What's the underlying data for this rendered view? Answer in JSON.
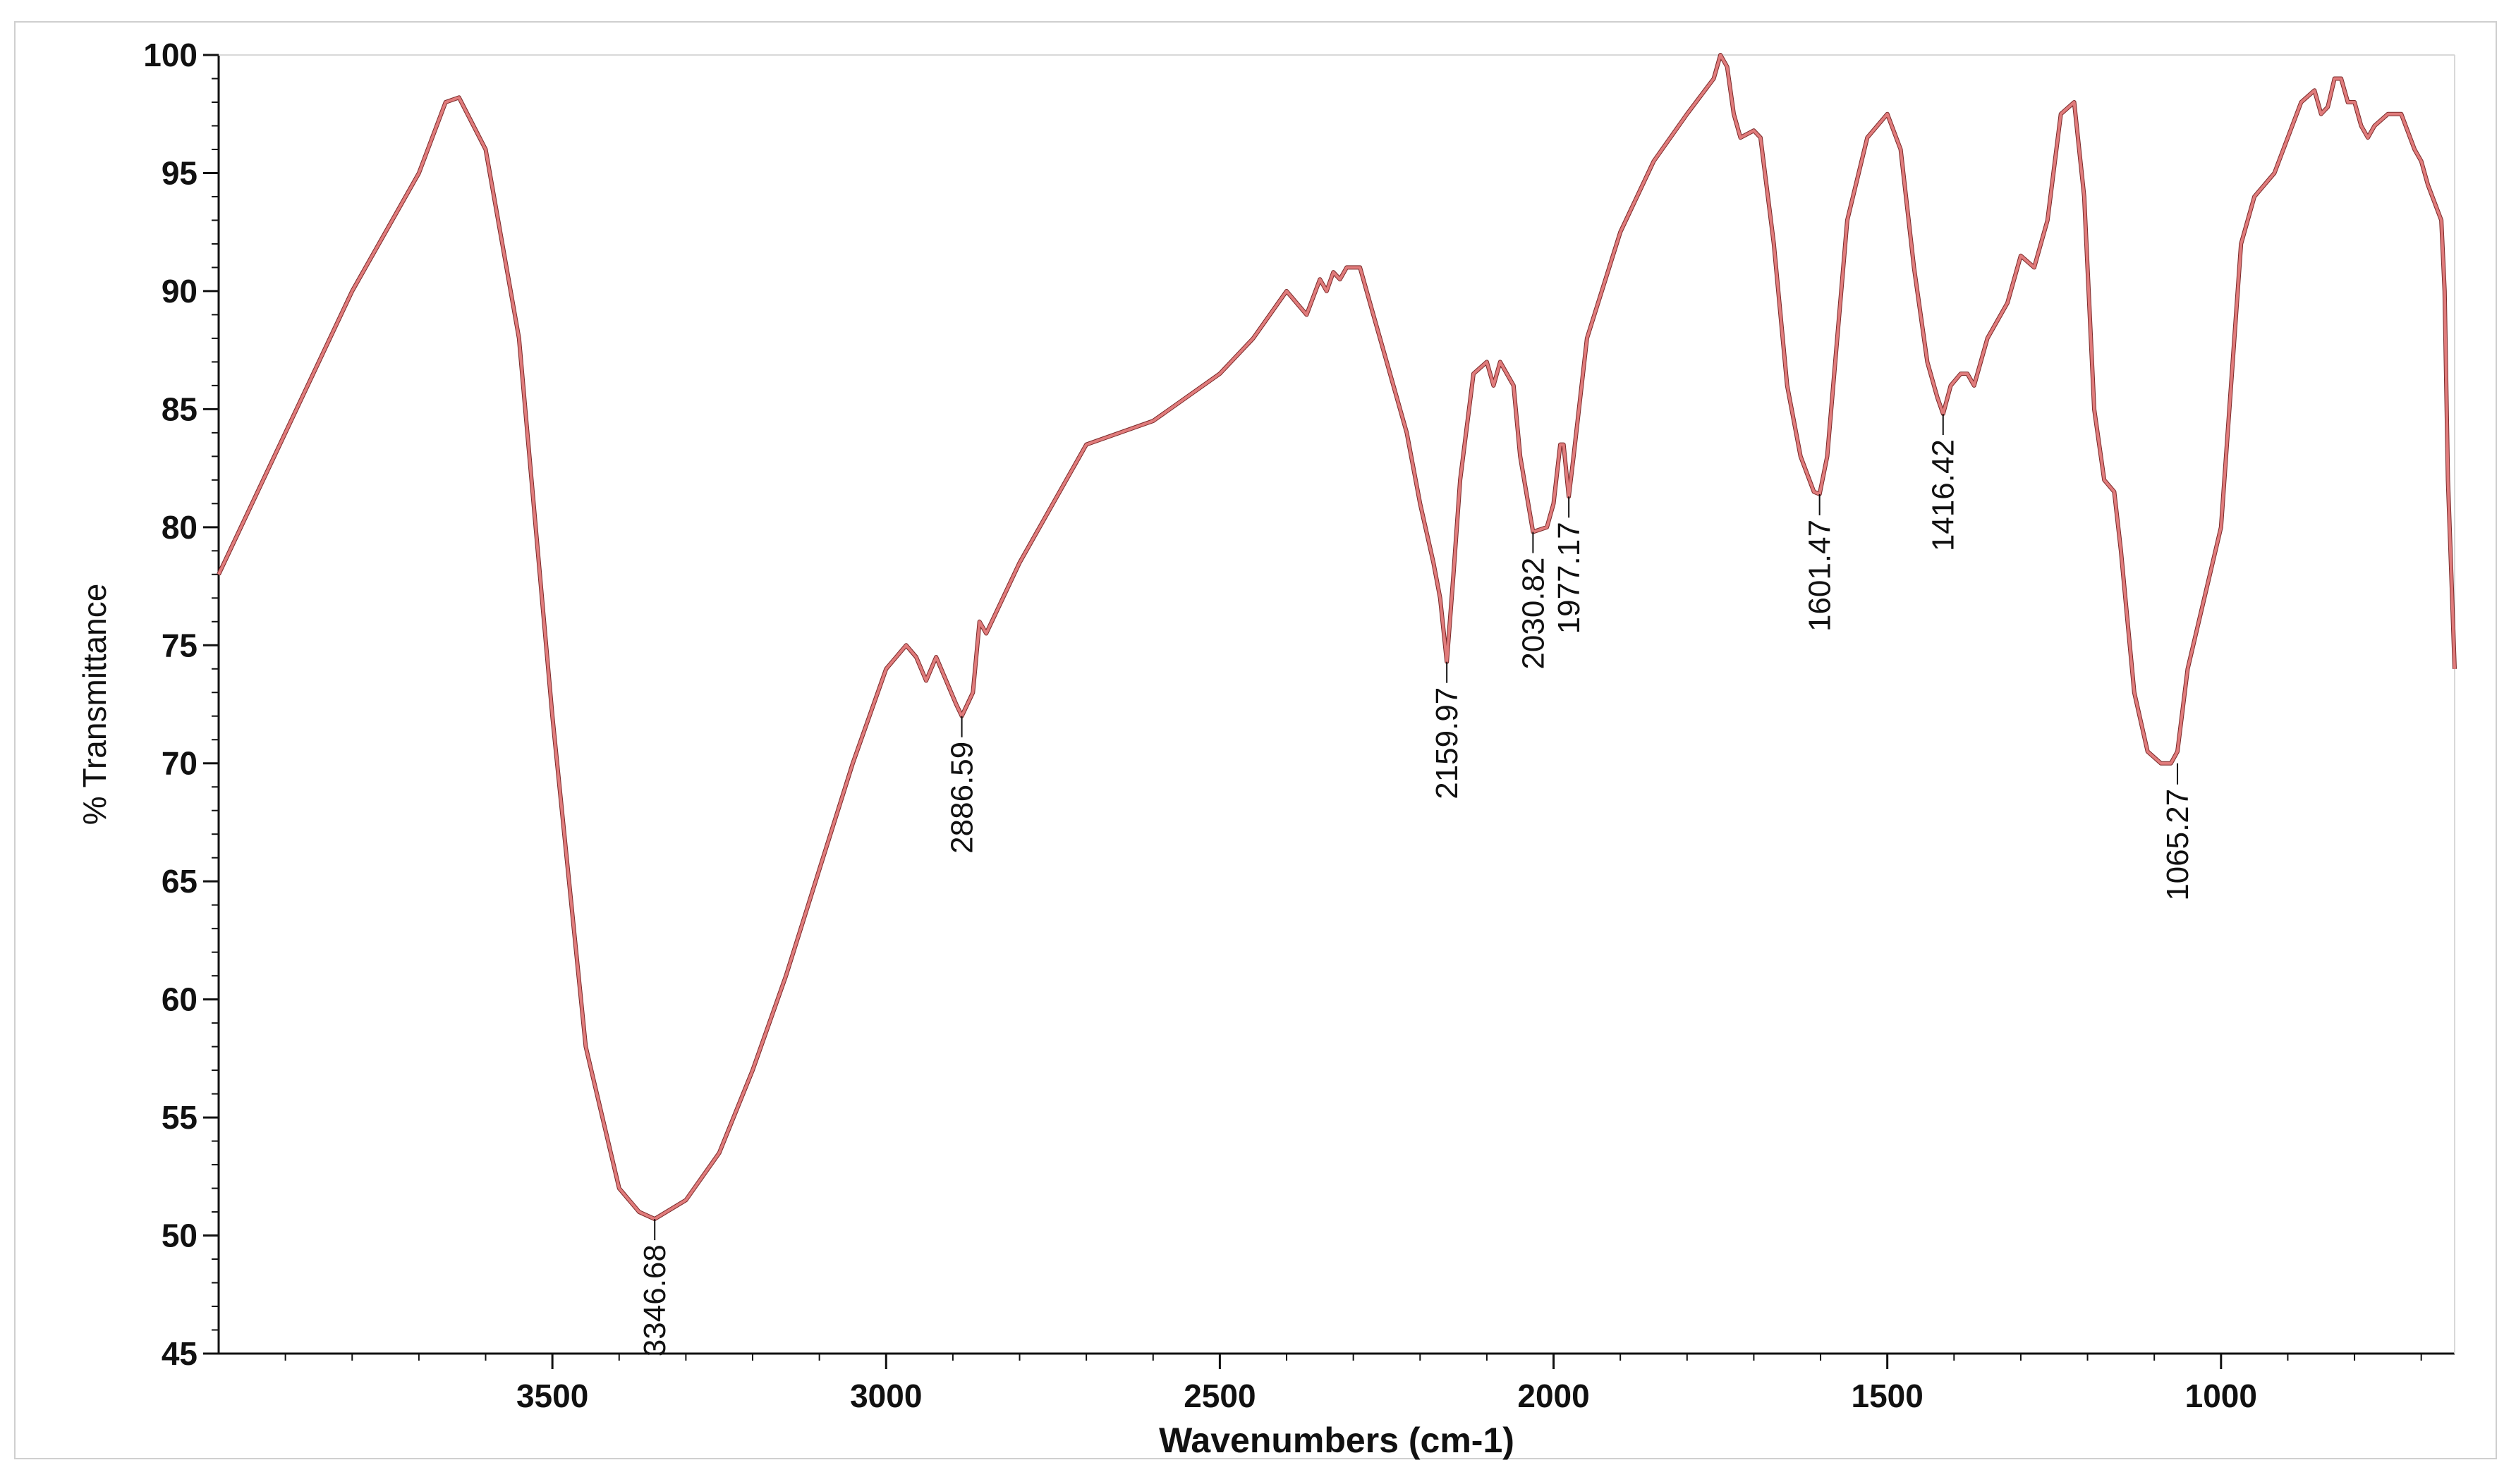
{
  "chart_data": {
    "type": "line",
    "xlabel": "Wavenumbers (cm-1)",
    "ylabel": "% Transmittance",
    "xlim": [
      4000,
      650
    ],
    "ylim": [
      45,
      100
    ],
    "x_reversed": true,
    "x_ticks": [
      3500,
      3000,
      2500,
      2000,
      1500,
      1000
    ],
    "y_ticks": [
      45,
      50,
      55,
      60,
      65,
      70,
      75,
      80,
      85,
      90,
      95,
      100
    ],
    "grid": false,
    "line_color": "#e07b7b",
    "series": [
      {
        "x": [
          4000,
          3900,
          3800,
          3700,
          3660,
          3640,
          3600,
          3550,
          3500,
          3450,
          3400,
          3370,
          3346.68,
          3300,
          3250,
          3200,
          3150,
          3100,
          3050,
          3000,
          2970,
          2955,
          2940,
          2925,
          2910,
          2895,
          2886.59,
          2870,
          2860,
          2850,
          2800,
          2700,
          2600,
          2500,
          2450,
          2400,
          2370,
          2350,
          2340,
          2330,
          2320,
          2310,
          2290,
          2270,
          2250,
          2220,
          2200,
          2180,
          2170,
          2159.97,
          2150,
          2140,
          2120,
          2100,
          2090,
          2080,
          2060,
          2050,
          2030.82,
          2010,
          2000,
          1990,
          1985,
          1977.17,
          1970,
          1950,
          1900,
          1850,
          1800,
          1760,
          1750,
          1740,
          1730,
          1720,
          1700,
          1690,
          1670,
          1650,
          1630,
          1610,
          1601.47,
          1590,
          1560,
          1530,
          1500,
          1480,
          1460,
          1440,
          1425,
          1416.42,
          1405,
          1390,
          1380,
          1370,
          1350,
          1320,
          1300,
          1280,
          1260,
          1240,
          1220,
          1205,
          1190,
          1175,
          1160,
          1150,
          1140,
          1130,
          1110,
          1090,
          1075,
          1065.27,
          1050,
          1000,
          970,
          950,
          920,
          880,
          860,
          850,
          840,
          830,
          820,
          810,
          800,
          790,
          780,
          770,
          750,
          730,
          710,
          700,
          690,
          670,
          665,
          660,
          655,
          650
        ],
        "y": [
          78,
          84,
          90,
          95,
          98,
          98.2,
          96,
          88,
          72,
          58,
          52,
          51,
          50.7,
          51.5,
          53.5,
          57,
          61,
          65.5,
          70,
          74,
          75,
          74.5,
          73.5,
          74.5,
          73.5,
          72.5,
          72,
          73,
          76,
          75.5,
          78.5,
          83.5,
          84.5,
          86.5,
          88,
          90,
          89,
          90.5,
          90,
          90.8,
          90.5,
          91,
          91,
          89,
          87,
          84,
          81,
          78.5,
          77,
          74.3,
          78,
          82,
          86.5,
          87,
          86,
          87,
          86,
          83,
          79.8,
          80,
          81,
          83.5,
          83.5,
          81.3,
          83,
          88,
          92.5,
          95.5,
          97.5,
          99,
          100,
          99.5,
          97.5,
          96.5,
          96.8,
          96.5,
          92,
          86,
          83,
          81.5,
          81.4,
          83,
          93,
          96.5,
          97.5,
          96,
          91,
          87,
          85.5,
          84.8,
          86,
          86.5,
          86.5,
          86,
          88,
          89.5,
          91.5,
          91,
          93,
          97.5,
          98,
          94,
          85,
          82,
          81.5,
          79,
          76,
          73,
          70.5,
          70,
          70,
          70.5,
          74,
          80,
          92,
          94,
          95,
          98,
          98.5,
          97.5,
          97.8,
          99,
          99,
          98,
          98,
          97,
          96.5,
          97,
          97.5,
          97.5,
          96,
          95.5,
          94.5,
          93,
          90,
          82,
          78,
          74
        ]
      }
    ],
    "annotations": [
      {
        "label": "3346.68",
        "x": 3346.68,
        "y": 50.7
      },
      {
        "label": "2886.59",
        "x": 2886.59,
        "y": 72
      },
      {
        "label": "2159.97",
        "x": 2159.97,
        "y": 74.3
      },
      {
        "label": "2030.82",
        "x": 2030.82,
        "y": 79.8
      },
      {
        "label": "1977.17",
        "x": 1977.17,
        "y": 81.3
      },
      {
        "label": "1601.47",
        "x": 1601.47,
        "y": 81.4
      },
      {
        "label": "1416.42",
        "x": 1416.42,
        "y": 84.8
      },
      {
        "label": "1065.27",
        "x": 1065.27,
        "y": 70
      }
    ]
  }
}
